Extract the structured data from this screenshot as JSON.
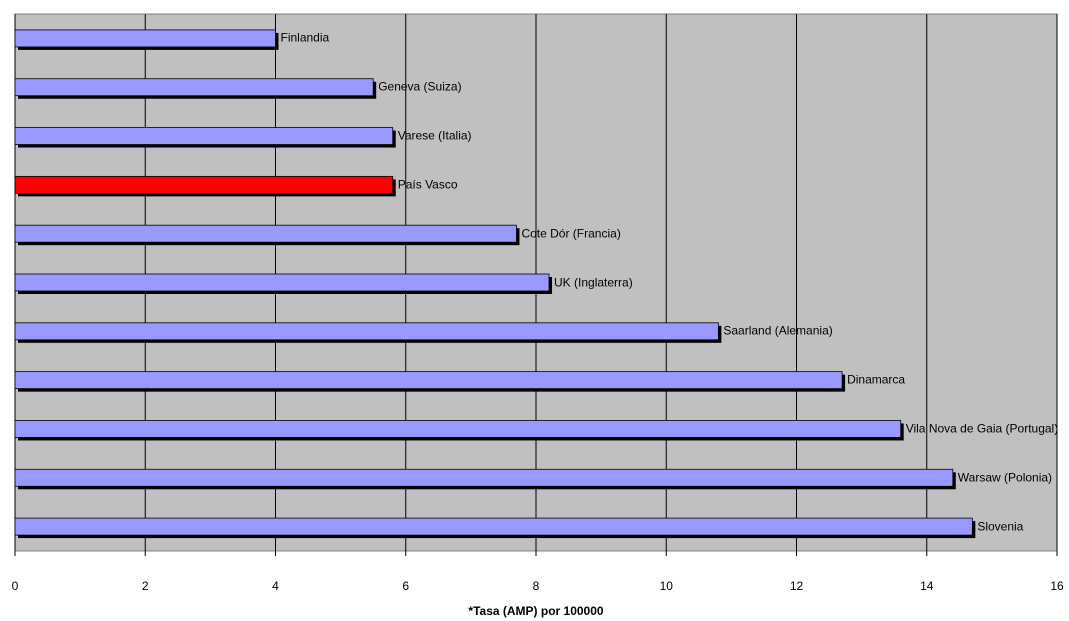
{
  "chart_data": {
    "type": "barh",
    "xlabel": "*Tasa (AMP) por 100000",
    "categories": [
      "Finlandia",
      "Geneva (Suiza)",
      "Varese (Italia)",
      "País Vasco",
      "Cote Dór (Francia)",
      "UK (Inglaterra)",
      "Saarland (Alemania)",
      "Dinamarca",
      "Vila Nova de Gaia (Portugal)",
      "Warsaw (Polonia)",
      "Slovenia"
    ],
    "values": [
      4.0,
      5.5,
      5.8,
      5.8,
      7.7,
      8.2,
      10.8,
      12.7,
      13.6,
      14.4,
      14.7
    ],
    "colors": [
      "#9999ff",
      "#9999ff",
      "#9999ff",
      "#ff0000",
      "#9999ff",
      "#9999ff",
      "#9999ff",
      "#9999ff",
      "#9999ff",
      "#9999ff",
      "#9999ff"
    ],
    "xlim": [
      0,
      16
    ],
    "xticks": [
      0,
      2,
      4,
      6,
      8,
      10,
      12,
      14,
      16
    ],
    "grid": true
  }
}
